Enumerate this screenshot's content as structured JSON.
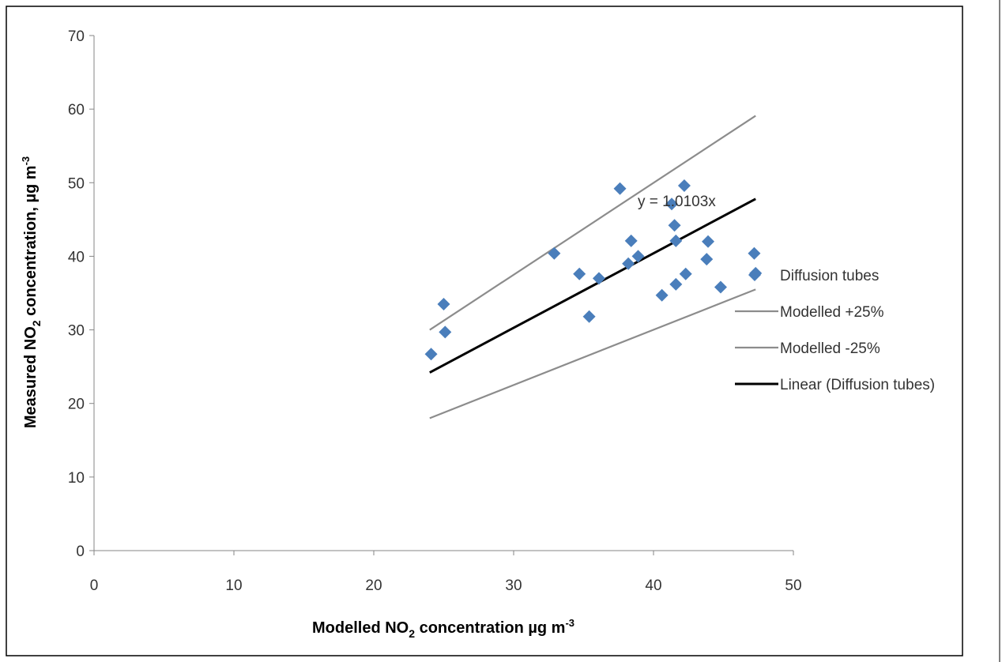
{
  "chart_data": {
    "type": "scatter",
    "xlabel": {
      "main": "Modelled NO",
      "sub": "2",
      "rest": " concentration µg m",
      "sup": "-3"
    },
    "ylabel": {
      "main": "Measured NO",
      "sub": "2",
      "rest": " concentration, µg m",
      "sup": "-3"
    },
    "xlim": [
      0,
      50
    ],
    "ylim": [
      0,
      70
    ],
    "xticks": [
      0,
      10,
      20,
      30,
      40,
      50
    ],
    "yticks": [
      0,
      10,
      20,
      30,
      40,
      50,
      60,
      70
    ],
    "grid": false,
    "legend_position": "right",
    "series": [
      {
        "name": "Diffusion tubes",
        "kind": "scatter",
        "color": "#4a7ebb",
        "marker": "diamond",
        "points": [
          [
            24.1,
            26.7
          ],
          [
            25.0,
            33.5
          ],
          [
            25.1,
            29.7
          ],
          [
            32.9,
            40.4
          ],
          [
            34.7,
            37.6
          ],
          [
            35.4,
            31.8
          ],
          [
            36.1,
            37.0
          ],
          [
            37.6,
            49.2
          ],
          [
            38.2,
            39.0
          ],
          [
            38.4,
            42.1
          ],
          [
            38.9,
            40.0
          ],
          [
            40.6,
            34.7
          ],
          [
            41.3,
            47.1
          ],
          [
            41.5,
            44.2
          ],
          [
            41.6,
            42.1
          ],
          [
            41.6,
            36.2
          ],
          [
            42.2,
            49.6
          ],
          [
            42.3,
            37.6
          ],
          [
            43.8,
            39.6
          ],
          [
            43.9,
            42.0
          ],
          [
            44.8,
            35.8
          ],
          [
            47.2,
            40.4
          ],
          [
            47.3,
            37.7
          ]
        ]
      },
      {
        "name": "Modelled +25%",
        "kind": "line",
        "color": "#8c8c8c",
        "points": [
          [
            24.0,
            30.0
          ],
          [
            47.3,
            59.1
          ]
        ]
      },
      {
        "name": "Modelled -25%",
        "kind": "line",
        "color": "#8c8c8c",
        "points": [
          [
            24.0,
            18.0
          ],
          [
            47.3,
            35.5
          ]
        ]
      },
      {
        "name": "Linear (Diffusion tubes)",
        "kind": "line",
        "color": "#000000",
        "points": [
          [
            24.0,
            24.2
          ],
          [
            47.3,
            47.8
          ]
        ]
      }
    ],
    "trendline_label": "y = 1.0103x"
  }
}
